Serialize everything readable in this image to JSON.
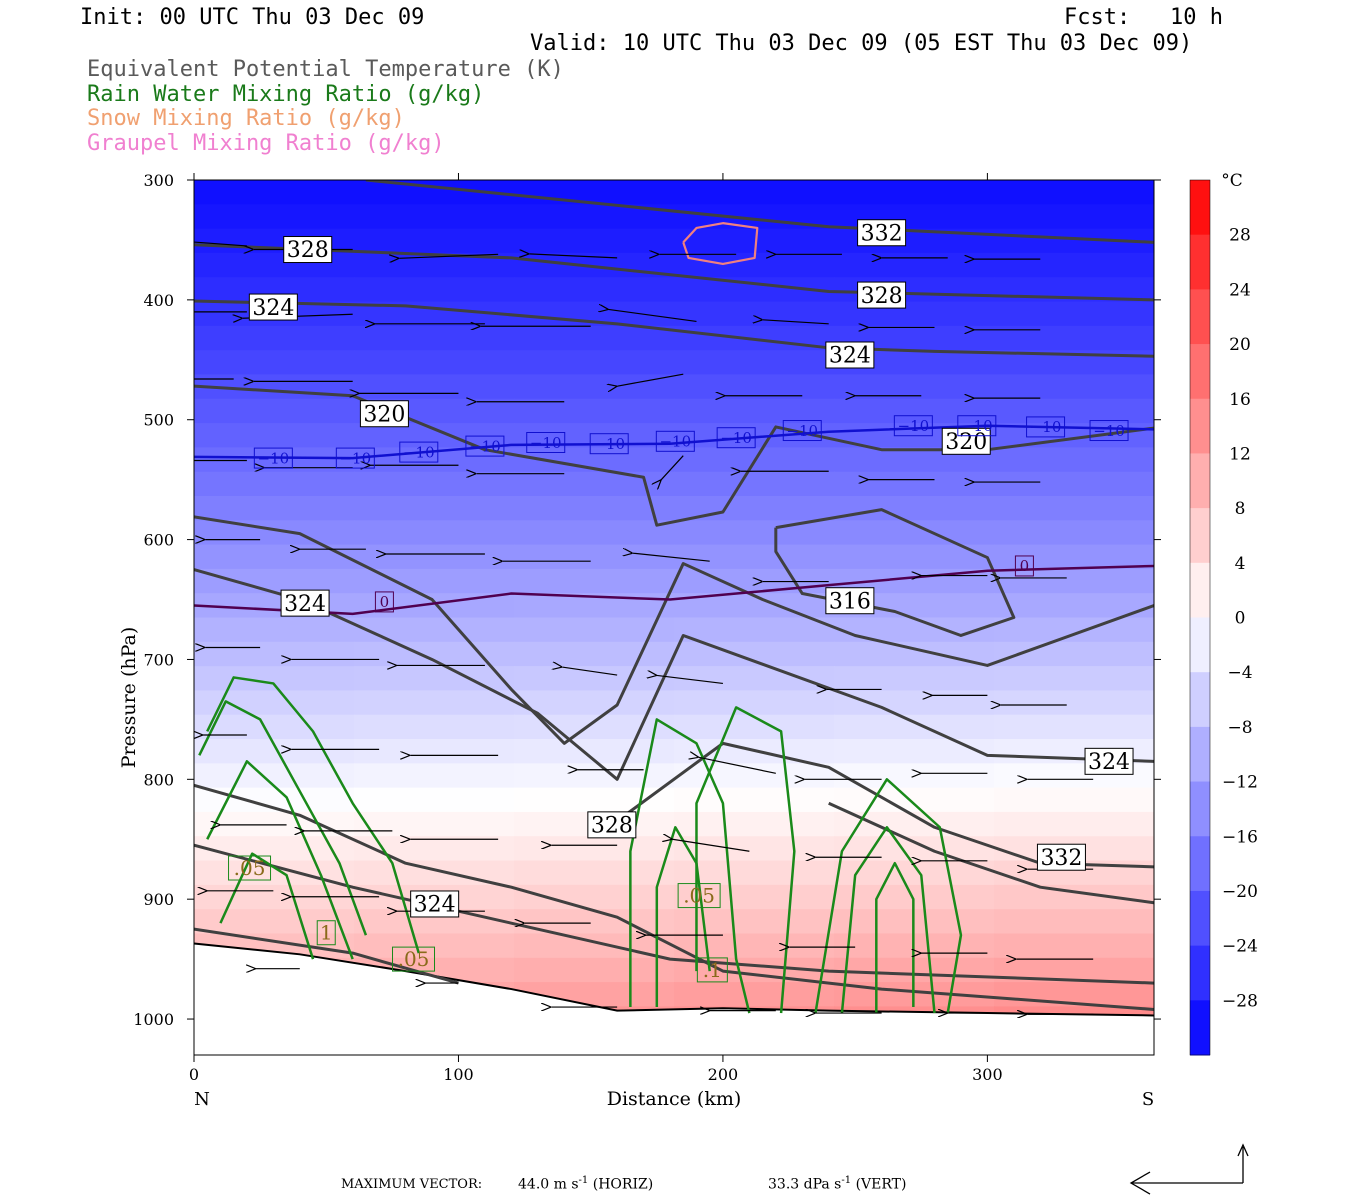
{
  "header": {
    "init": "Init: 00 UTC Thu 03 Dec 09",
    "fcst": "Fcst:   10 h",
    "valid": "Valid: 10 UTC Thu 03 Dec 09 (05 EST Thu 03 Dec 09)"
  },
  "legend_lines": [
    {
      "text": "Equivalent Potential Temperature (K)",
      "color": "#5a5a5a"
    },
    {
      "text": "Rain Water Mixing Ratio (g/kg)",
      "color": "#1a7a1a"
    },
    {
      "text": "Snow Mixing Ratio (g/kg)",
      "color": "#f0a070"
    },
    {
      "text": "Graupel Mixing Ratio (g/kg)",
      "color": "#f080d0"
    }
  ],
  "chart_data": {
    "type": "cross-section",
    "xlabel": "Distance (km)",
    "ylabel": "Pressure (hPa)",
    "xlim": [
      0,
      363
    ],
    "ylim": [
      1030,
      300
    ],
    "xticks": [
      0,
      100,
      200,
      300
    ],
    "yticks": [
      300,
      400,
      500,
      600,
      700,
      800,
      900,
      1000
    ],
    "x_end_labels": {
      "left": "N",
      "right": "S"
    },
    "colorbar": {
      "unit": "°C",
      "min": -32,
      "max": 32,
      "step": 4,
      "tick_labels": [
        "28",
        "24",
        "20",
        "16",
        "12",
        "8",
        "4",
        "0",
        "−4",
        "−8",
        "−12",
        "−16",
        "−20",
        "−24",
        "−28"
      ],
      "tick_values": [
        28,
        24,
        20,
        16,
        12,
        8,
        4,
        0,
        -4,
        -8,
        -12,
        -16,
        -20,
        -24,
        -28
      ]
    },
    "temperature_field": {
      "surface_C": 15,
      "top_C": -30
    },
    "contour_labels": [
      {
        "text": "328",
        "x": 43,
        "p": 358,
        "kind": "theta_e"
      },
      {
        "text": "332",
        "x": 260,
        "p": 344,
        "kind": "theta_e"
      },
      {
        "text": "324",
        "x": 30,
        "p": 406,
        "kind": "theta_e"
      },
      {
        "text": "328",
        "x": 260,
        "p": 396,
        "kind": "theta_e"
      },
      {
        "text": "324",
        "x": 248,
        "p": 446,
        "kind": "theta_e"
      },
      {
        "text": "320",
        "x": 72,
        "p": 495,
        "kind": "theta_e"
      },
      {
        "text": "320",
        "x": 292,
        "p": 518,
        "kind": "theta_e"
      },
      {
        "text": "316",
        "x": 248,
        "p": 651,
        "kind": "theta_e"
      },
      {
        "text": "324",
        "x": 42,
        "p": 653,
        "kind": "theta_e"
      },
      {
        "text": "324",
        "x": 346,
        "p": 785,
        "kind": "theta_e"
      },
      {
        "text": "328",
        "x": 158,
        "p": 838,
        "kind": "theta_e"
      },
      {
        "text": "332",
        "x": 328,
        "p": 865,
        "kind": "theta_e"
      },
      {
        "text": "324",
        "x": 91,
        "p": 904,
        "kind": "theta_e"
      },
      {
        "text": "−10",
        "x": 30,
        "p": 532,
        "kind": "isotherm"
      },
      {
        "text": "−10",
        "x": 61,
        "p": 532,
        "kind": "isotherm"
      },
      {
        "text": "−10",
        "x": 85,
        "p": 527,
        "kind": "isotherm"
      },
      {
        "text": "−10",
        "x": 110,
        "p": 522,
        "kind": "isotherm"
      },
      {
        "text": "−10",
        "x": 133,
        "p": 519,
        "kind": "isotherm"
      },
      {
        "text": "−10",
        "x": 157,
        "p": 520,
        "kind": "isotherm"
      },
      {
        "text": "−10",
        "x": 182,
        "p": 518,
        "kind": "isotherm"
      },
      {
        "text": "−10",
        "x": 205,
        "p": 515,
        "kind": "isotherm"
      },
      {
        "text": "−10",
        "x": 230,
        "p": 509,
        "kind": "isotherm"
      },
      {
        "text": "−10",
        "x": 272,
        "p": 505,
        "kind": "isotherm"
      },
      {
        "text": "−10",
        "x": 296,
        "p": 505,
        "kind": "isotherm"
      },
      {
        "text": "−10",
        "x": 322,
        "p": 506,
        "kind": "isotherm"
      },
      {
        "text": "−10",
        "x": 346,
        "p": 509,
        "kind": "isotherm"
      },
      {
        "text": "0",
        "x": 72,
        "p": 652,
        "kind": "isotherm"
      },
      {
        "text": "0",
        "x": 314,
        "p": 622,
        "kind": "isotherm"
      },
      {
        "text": ".05",
        "x": 21,
        "p": 874,
        "kind": "rain"
      },
      {
        "text": "1",
        "x": 50,
        "p": 928,
        "kind": "rain"
      },
      {
        "text": ".05",
        "x": 83,
        "p": 950,
        "kind": "rain"
      },
      {
        "text": ".05",
        "x": 191,
        "p": 897,
        "kind": "rain"
      },
      {
        "text": ".1",
        "x": 196,
        "p": 959,
        "kind": "rain"
      }
    ]
  },
  "footer": {
    "max_vector_label": "MAXIMUM VECTOR:",
    "horiz": "44.0 m s",
    "horiz_unit": "(HORIZ)",
    "vert": "33.3 dPa s",
    "vert_unit": "(VERT)",
    "exp": "-1"
  }
}
